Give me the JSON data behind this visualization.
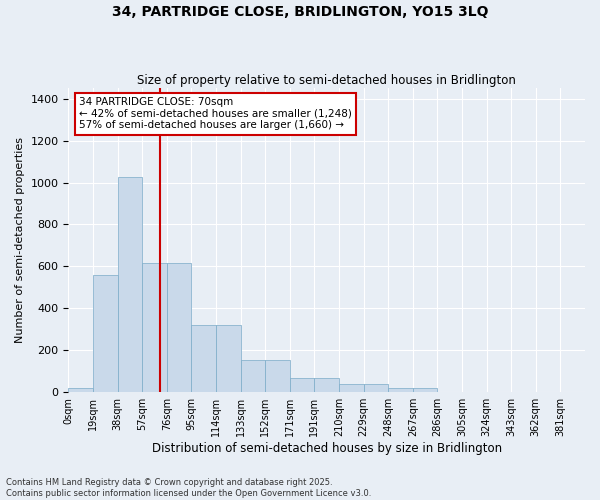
{
  "title_line1": "34, PARTRIDGE CLOSE, BRIDLINGTON, YO15 3LQ",
  "title_line2": "Size of property relative to semi-detached houses in Bridlington",
  "xlabel": "Distribution of semi-detached houses by size in Bridlington",
  "ylabel": "Number of semi-detached properties",
  "bin_labels": [
    "0sqm",
    "19sqm",
    "38sqm",
    "57sqm",
    "76sqm",
    "95sqm",
    "114sqm",
    "133sqm",
    "152sqm",
    "171sqm",
    "191sqm",
    "210sqm",
    "229sqm",
    "248sqm",
    "267sqm",
    "286sqm",
    "305sqm",
    "324sqm",
    "343sqm",
    "362sqm",
    "381sqm"
  ],
  "bar_heights": [
    20,
    560,
    1025,
    615,
    615,
    320,
    320,
    155,
    155,
    70,
    70,
    40,
    40,
    20,
    20,
    0,
    0,
    0,
    0,
    0,
    0
  ],
  "bar_color": "#c9d9ea",
  "bar_edge_color": "#7aaac8",
  "vline_color": "#cc0000",
  "vline_x": 3.72,
  "ylim": [
    0,
    1450
  ],
  "yticks": [
    0,
    200,
    400,
    600,
    800,
    1000,
    1200,
    1400
  ],
  "annotation_text": "34 PARTRIDGE CLOSE: 70sqm\n← 42% of semi-detached houses are smaller (1,248)\n57% of semi-detached houses are larger (1,660) →",
  "annotation_box_color": "#cc0000",
  "footnote": "Contains HM Land Registry data © Crown copyright and database right 2025.\nContains public sector information licensed under the Open Government Licence v3.0.",
  "background_color": "#e8eef5",
  "plot_background": "#e8eef5",
  "grid_color": "#ffffff",
  "fig_width": 6.0,
  "fig_height": 5.0,
  "dpi": 100
}
